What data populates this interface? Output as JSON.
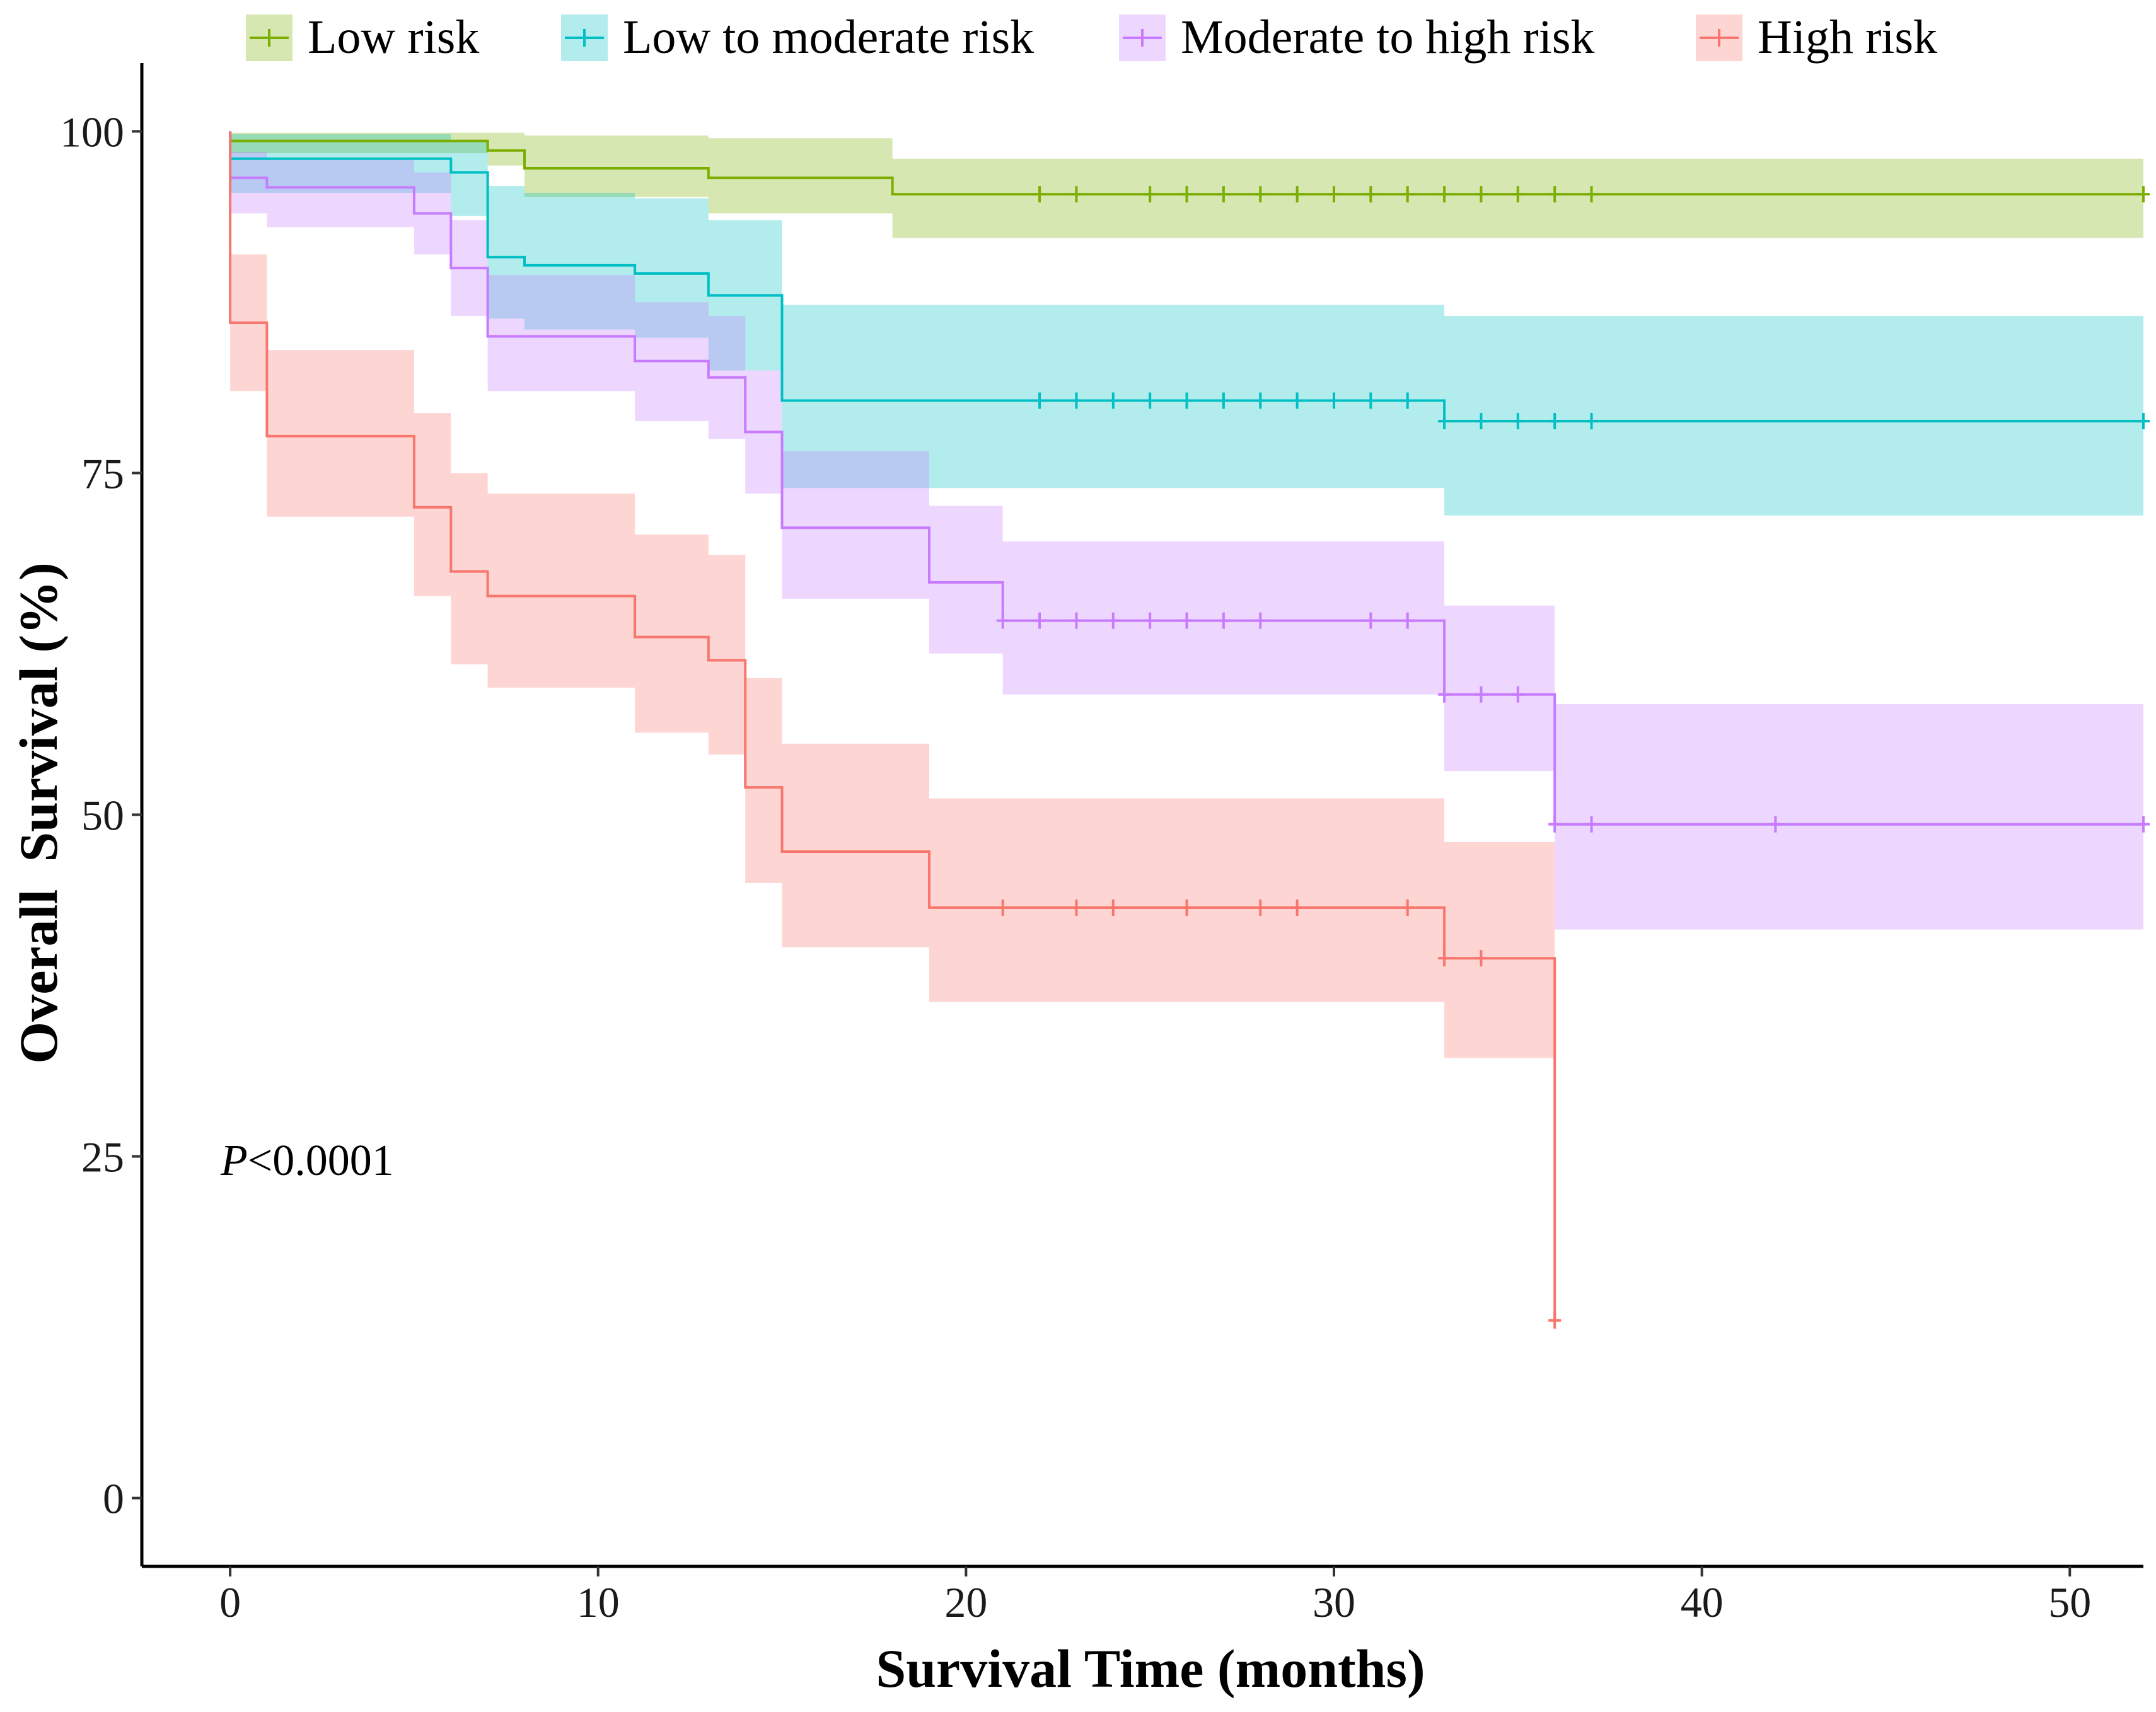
{
  "chart_data": {
    "type": "line",
    "subtype": "kaplan-meier step curves with confidence bands",
    "title": "",
    "xlabel": "Survival Time (months)",
    "ylabel": "Overall  Survival (%)",
    "xlim": [
      -2.4,
      52
    ],
    "ylim": [
      -5,
      105
    ],
    "xticks": [
      0,
      10,
      20,
      30,
      40,
      50
    ],
    "yticks": [
      0,
      25,
      50,
      75,
      100
    ],
    "grid": false,
    "legend_position": "top",
    "annotation": {
      "prefix": "P",
      "text": "<0.0001"
    },
    "series": [
      {
        "name": "Low risk",
        "color": "#7CAE00",
        "steps": [
          [
            0,
            100
          ],
          [
            0,
            99.3
          ],
          [
            7,
            99.3
          ],
          [
            7,
            98.6
          ],
          [
            8,
            98.6
          ],
          [
            8,
            97.3
          ],
          [
            13,
            97.3
          ],
          [
            13,
            96.6
          ],
          [
            18,
            96.6
          ],
          [
            18,
            95.4
          ],
          [
            52,
            95.4
          ]
        ],
        "band": [
          [
            0,
            99.9,
            98.4
          ],
          [
            7,
            99.9,
            97.5
          ],
          [
            8,
            99.7,
            95.2
          ],
          [
            13,
            99.5,
            94.0
          ],
          [
            18,
            98.0,
            92.2
          ],
          [
            52,
            98.8,
            92.2
          ]
        ],
        "censor_x": [
          22,
          23,
          25,
          26,
          27,
          28,
          29,
          30,
          31,
          32,
          33,
          34,
          35,
          36,
          37,
          52
        ]
      },
      {
        "name": "Low to moderate risk",
        "color": "#00BFC4",
        "steps": [
          [
            0,
            100
          ],
          [
            0,
            98.0
          ],
          [
            6,
            98.0
          ],
          [
            6,
            97.0
          ],
          [
            7,
            97.0
          ],
          [
            7,
            90.8
          ],
          [
            8,
            90.8
          ],
          [
            8,
            90.2
          ],
          [
            11,
            90.2
          ],
          [
            11,
            89.6
          ],
          [
            13,
            89.6
          ],
          [
            13,
            88.0
          ],
          [
            15,
            88.0
          ],
          [
            15,
            80.3
          ],
          [
            33,
            80.3
          ],
          [
            33,
            78.8
          ],
          [
            52,
            78.8
          ]
        ],
        "band": [
          [
            0,
            99.8,
            95.5
          ],
          [
            6,
            99.3,
            93.8
          ],
          [
            7,
            96.0,
            86.3
          ],
          [
            8,
            95.5,
            85.5
          ],
          [
            11,
            95.1,
            84.9
          ],
          [
            13,
            93.5,
            82.5
          ],
          [
            15,
            87.3,
            73.9
          ],
          [
            33,
            86.5,
            71.9
          ],
          [
            52,
            86.5,
            71.9
          ]
        ],
        "censor_x": [
          22,
          23,
          24,
          25,
          26,
          27,
          28,
          29,
          30,
          31,
          32,
          33,
          34,
          35,
          36,
          37,
          52
        ]
      },
      {
        "name": "Moderate to high risk",
        "color": "#C77CFF",
        "steps": [
          [
            0,
            100
          ],
          [
            0,
            96.6
          ],
          [
            1,
            96.6
          ],
          [
            1,
            95.9
          ],
          [
            5,
            95.9
          ],
          [
            5,
            94.0
          ],
          [
            6,
            94.0
          ],
          [
            6,
            90.0
          ],
          [
            7,
            90.0
          ],
          [
            7,
            85.0
          ],
          [
            11,
            85.0
          ],
          [
            11,
            83.2
          ],
          [
            13,
            83.2
          ],
          [
            13,
            82.0
          ],
          [
            14,
            82.0
          ],
          [
            14,
            78.0
          ],
          [
            15,
            78.0
          ],
          [
            15,
            71.0
          ],
          [
            19,
            71.0
          ],
          [
            19,
            67.0
          ],
          [
            21,
            67.0
          ],
          [
            21,
            64.2
          ],
          [
            33,
            64.2
          ],
          [
            33,
            58.8
          ],
          [
            36,
            58.8
          ],
          [
            36,
            49.3
          ],
          [
            52,
            49.3
          ]
        ],
        "band": [
          [
            0,
            98.5,
            94.0
          ],
          [
            1,
            98.0,
            93.0
          ],
          [
            5,
            97.0,
            91.0
          ],
          [
            6,
            93.5,
            86.5
          ],
          [
            7,
            89.5,
            81.0
          ],
          [
            11,
            87.5,
            78.8
          ],
          [
            13,
            86.5,
            77.5
          ],
          [
            14,
            82.5,
            73.5
          ],
          [
            15,
            76.6,
            65.8
          ],
          [
            19,
            72.6,
            61.8
          ],
          [
            21,
            70.0,
            58.8
          ],
          [
            33,
            65.3,
            53.2
          ],
          [
            36,
            58.1,
            41.6
          ],
          [
            52,
            58.1,
            41.6
          ]
        ],
        "censor_x": [
          21,
          22,
          23,
          24,
          25,
          26,
          27,
          28,
          31,
          32,
          33,
          34,
          35,
          36,
          37,
          42,
          52
        ]
      },
      {
        "name": "High risk",
        "color": "#F8766D",
        "steps": [
          [
            0,
            100
          ],
          [
            0,
            86.0
          ],
          [
            1,
            86.0
          ],
          [
            1,
            77.7
          ],
          [
            5,
            77.7
          ],
          [
            5,
            72.5
          ],
          [
            6,
            72.5
          ],
          [
            6,
            67.8
          ],
          [
            7,
            67.8
          ],
          [
            7,
            66.0
          ],
          [
            11,
            66.0
          ],
          [
            11,
            63.0
          ],
          [
            13,
            63.0
          ],
          [
            13,
            61.3
          ],
          [
            14,
            61.3
          ],
          [
            14,
            52.0
          ],
          [
            15,
            52.0
          ],
          [
            15,
            47.3
          ],
          [
            19,
            47.3
          ],
          [
            19,
            43.2
          ],
          [
            33,
            43.2
          ],
          [
            33,
            39.5
          ],
          [
            36,
            39.5
          ],
          [
            36,
            13.0
          ]
        ],
        "band": [
          [
            0,
            91.0,
            81.0
          ],
          [
            1,
            84.0,
            71.8
          ],
          [
            5,
            79.4,
            66.0
          ],
          [
            6,
            75.0,
            61.0
          ],
          [
            7,
            73.5,
            59.3
          ],
          [
            11,
            70.5,
            56.0
          ],
          [
            13,
            69.0,
            54.4
          ],
          [
            14,
            60.0,
            45.0
          ],
          [
            15,
            55.2,
            40.3
          ],
          [
            19,
            51.2,
            36.3
          ],
          [
            33,
            48.0,
            32.2
          ],
          [
            36,
            48.0,
            32.2
          ]
        ],
        "censor_x": [
          21,
          23,
          24,
          26,
          28,
          29,
          32,
          33,
          34,
          36
        ]
      }
    ]
  }
}
